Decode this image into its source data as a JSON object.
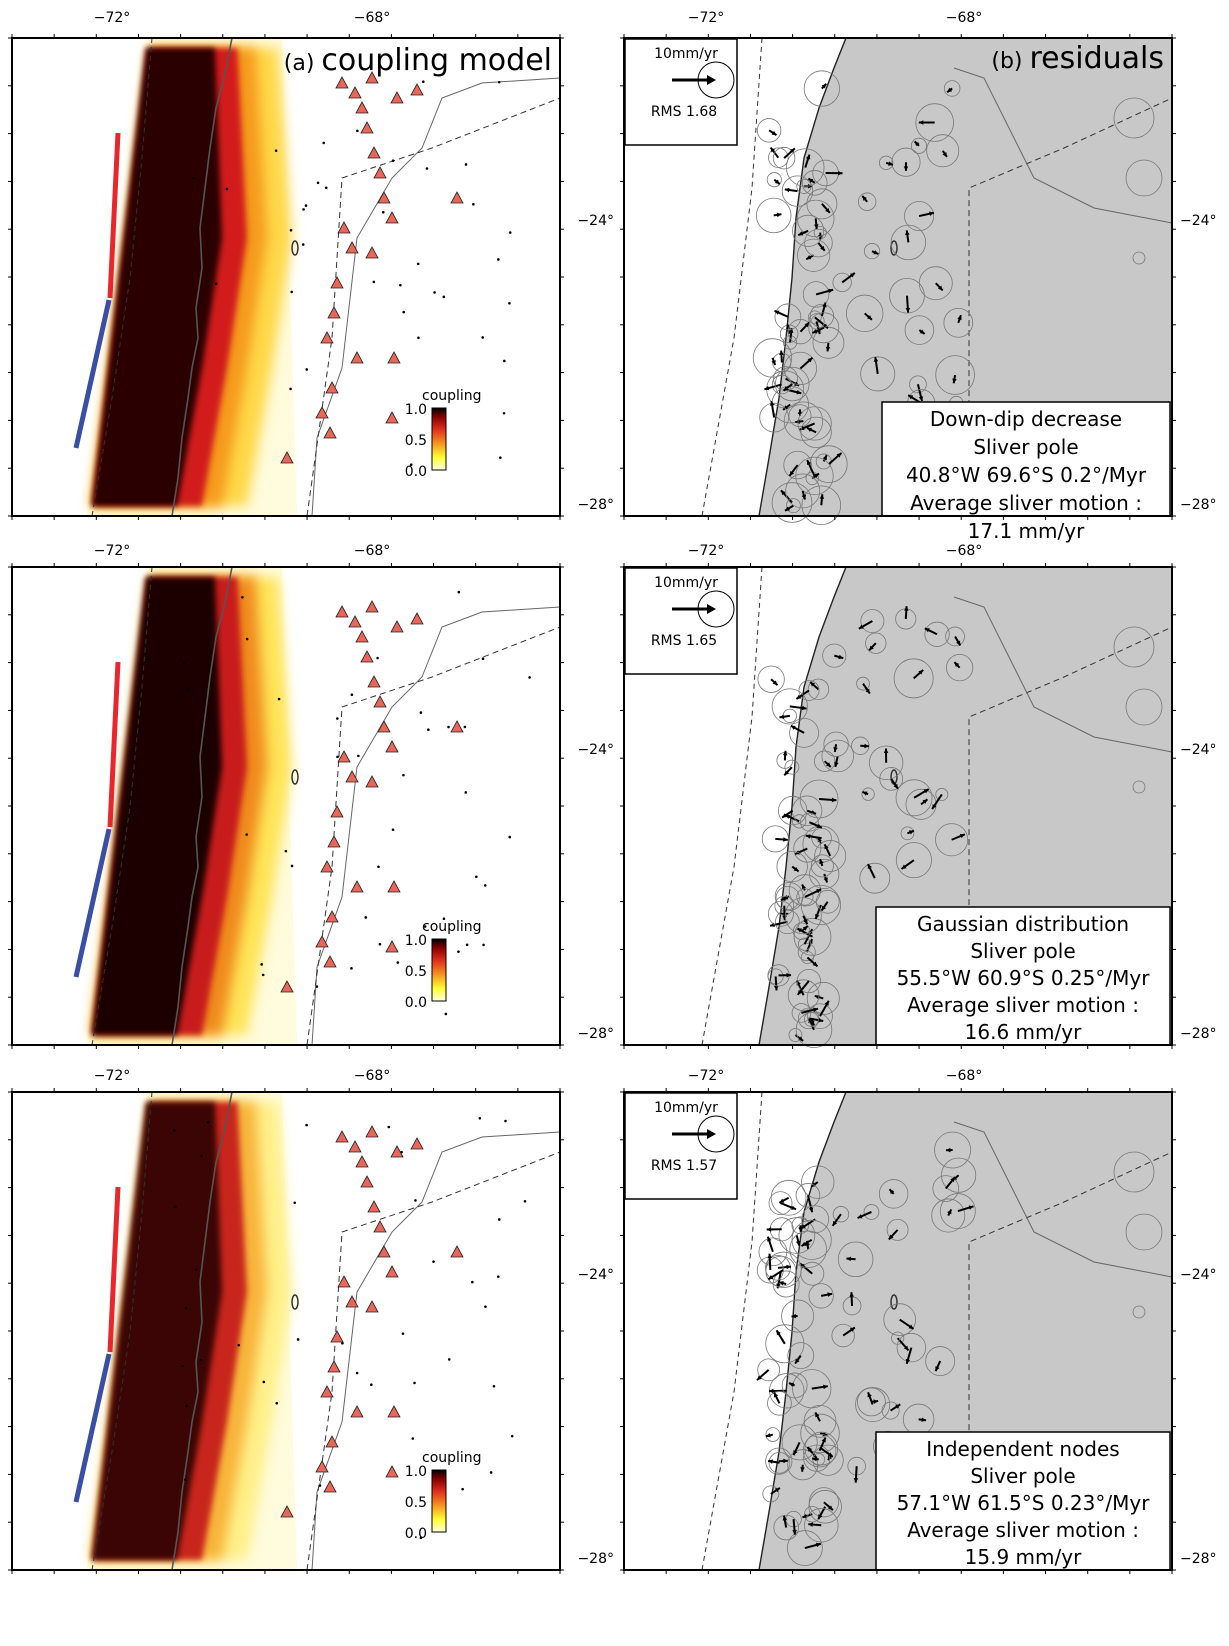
{
  "panels": {
    "left_title_letter": "(a)",
    "left_title_text": "coupling model",
    "right_title_letter": "(b)",
    "right_title_text": "residuals"
  },
  "axes": {
    "lon_ticks": [
      "−72°",
      "−68°"
    ],
    "lat_ticks": [
      "−24°",
      "−28°"
    ]
  },
  "colorbar": {
    "label": "coupling",
    "ticks": [
      "1.0",
      "0.5",
      "0.0"
    ],
    "colors": [
      "#000000",
      "#8b0000",
      "#e0301e",
      "#f58a1f",
      "#ffff33",
      "#ffffe0"
    ]
  },
  "rows": [
    {
      "scale_label": "10mm/yr",
      "rms": "RMS 1.68",
      "model": "Down-dip decrease",
      "pole_label": "Sliver pole",
      "pole": "40.8°W 69.6°S 0.2°/Myr",
      "avg_label": "Average sliver motion :",
      "avg": "17.1 mm/yr"
    },
    {
      "scale_label": "10mm/yr",
      "rms": "RMS 1.65",
      "model": "Gaussian distribution",
      "pole_label": "Sliver pole",
      "pole": "55.5°W 60.9°S 0.25°/Myr",
      "avg_label": "Average sliver motion :",
      "avg": "16.6 mm/yr"
    },
    {
      "scale_label": "10mm/yr",
      "rms": "RMS 1.57",
      "model": "Independent nodes",
      "pole_label": "Sliver pole",
      "pole": "57.1°W 61.5°S 0.23°/Myr",
      "avg_label": "Average sliver motion :",
      "avg": "15.9 mm/yr"
    }
  ],
  "colors": {
    "land": "#c8c8c8",
    "volcano": "#e8665a",
    "segment_north": "#e8262b",
    "segment_south": "#3a4fa3"
  }
}
